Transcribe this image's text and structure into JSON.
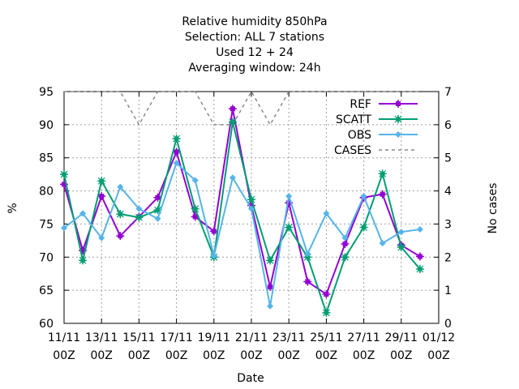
{
  "chart_data": {
    "type": "line",
    "title_lines": [
      "Relative humidity 850hPa",
      "Selection: ALL      7 stations",
      "Used  12 + 24",
      "Averaging window: 24h"
    ],
    "xlabel": "Date",
    "ylabel": "%",
    "y2label": "No cases",
    "x_ticks": [
      {
        "day": 0,
        "line1": "11/11",
        "line2": "00Z"
      },
      {
        "day": 2,
        "line1": "13/11",
        "line2": "00Z"
      },
      {
        "day": 4,
        "line1": "15/11",
        "line2": "00Z"
      },
      {
        "day": 6,
        "line1": "17/11",
        "line2": "00Z"
      },
      {
        "day": 8,
        "line1": "19/11",
        "line2": "00Z"
      },
      {
        "day": 10,
        "line1": "21/11",
        "line2": "00Z"
      },
      {
        "day": 12,
        "line1": "23/11",
        "line2": "00Z"
      },
      {
        "day": 14,
        "line1": "25/11",
        "line2": "00Z"
      },
      {
        "day": 16,
        "line1": "27/11",
        "line2": "00Z"
      },
      {
        "day": 18,
        "line1": "29/11",
        "line2": "00Z"
      },
      {
        "day": 20,
        "line1": "01/12",
        "line2": "00Z"
      }
    ],
    "xlim": [
      0,
      20
    ],
    "ylim": [
      60,
      95
    ],
    "yticks": [
      "60",
      "65",
      "70",
      "75",
      "80",
      "85",
      "90",
      "95"
    ],
    "y2lim": [
      0,
      7
    ],
    "y2ticks": [
      "0",
      "1",
      "2",
      "3",
      "4",
      "5",
      "6",
      "7"
    ],
    "grid": true,
    "legend_position": "top-right",
    "series": [
      {
        "name": "REF",
        "axis": "y",
        "color": "#9400d3",
        "marker": "plus",
        "x": [
          0,
          1,
          2,
          3,
          4,
          5,
          6,
          7,
          8,
          9,
          10,
          11,
          12,
          13,
          14,
          15,
          16,
          17,
          18,
          19
        ],
        "values": [
          81,
          71,
          79.2,
          73.2,
          76.1,
          79,
          85.9,
          76.1,
          73.9,
          92.4,
          77.8,
          65.5,
          78.2,
          66.3,
          64.4,
          72,
          79,
          79.5,
          71.8,
          70.1
        ]
      },
      {
        "name": "SCATT",
        "axis": "y",
        "color": "#009e73",
        "marker": "star",
        "x": [
          0,
          1,
          2,
          3,
          4,
          5,
          6,
          7,
          8,
          9,
          10,
          11,
          12,
          13,
          14,
          15,
          16,
          17,
          18,
          19
        ],
        "values": [
          82.5,
          69.5,
          81.5,
          76.5,
          76,
          77.1,
          87.9,
          77.3,
          70,
          90.4,
          78.7,
          69.5,
          74.5,
          70,
          61.6,
          70,
          74.5,
          82.6,
          71.5,
          68.2
        ]
      },
      {
        "name": "OBS",
        "axis": "y",
        "color": "#56b4e9",
        "marker": "diamond",
        "x": [
          0,
          1,
          2,
          3,
          4,
          5,
          6,
          7,
          8,
          9,
          10,
          11,
          12,
          13,
          14,
          15,
          16,
          17,
          18,
          19
        ],
        "values": [
          74.4,
          76.6,
          72.9,
          80.6,
          77.3,
          75.8,
          84.2,
          81.6,
          70.2,
          82,
          77.3,
          62.6,
          79.2,
          70.5,
          76.6,
          72.9,
          79.2,
          72.1,
          73.8,
          74.2
        ]
      },
      {
        "name": "CASES",
        "axis": "y2",
        "color": "#888888",
        "marker": "none",
        "dashed": true,
        "x": [
          0,
          1,
          2,
          3,
          4,
          5,
          6,
          7,
          8,
          9,
          10,
          11,
          12,
          13,
          14,
          15,
          16,
          17,
          18,
          19
        ],
        "values": [
          7,
          7,
          7,
          7,
          6,
          7,
          7,
          7,
          6,
          6,
          7,
          6,
          7,
          7,
          7,
          7,
          7,
          7,
          7,
          7
        ]
      }
    ]
  }
}
